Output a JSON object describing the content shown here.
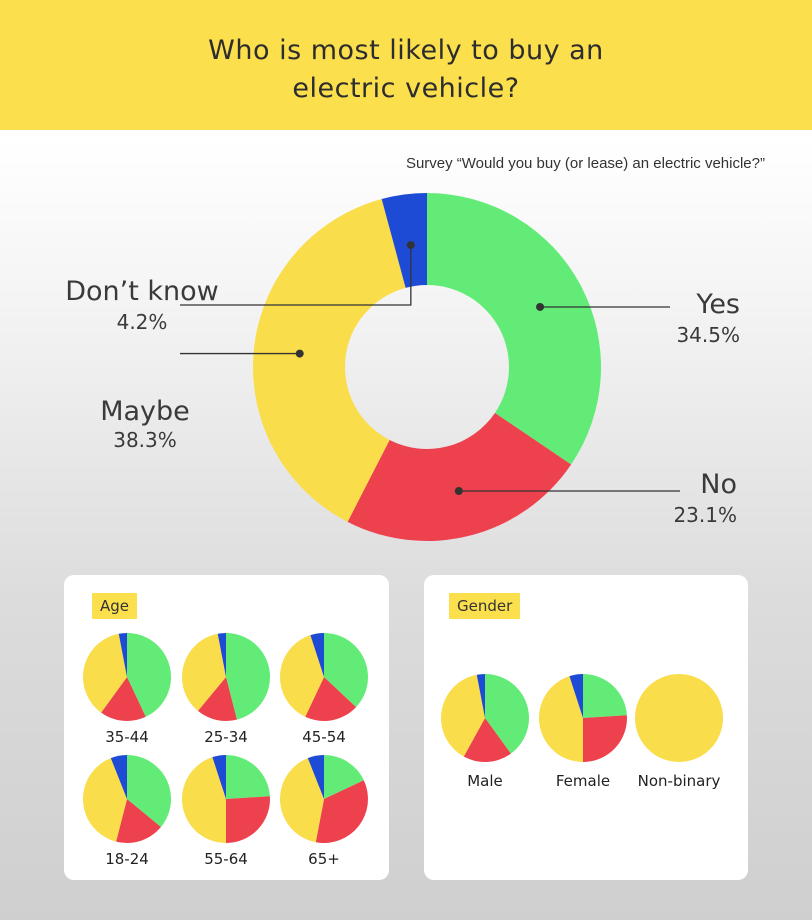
{
  "title_line1": "Who is most likely to buy an",
  "title_line2": "electric vehicle?",
  "subtitle": "Survey “Would you buy (or lease) an electric vehicle?”",
  "colors": {
    "yes": "#62ec77",
    "no": "#ee414e",
    "maybe": "#f9dd4a",
    "dont_know": "#1e4bd6",
    "header": "#fbdf4c"
  },
  "chart_data": [
    {
      "type": "pie",
      "variant": "donut",
      "categories": [
        "Yes",
        "No",
        "Maybe",
        "Don’t know"
      ],
      "values": [
        34.5,
        23.1,
        38.3,
        4.2
      ],
      "value_labels": [
        "34.5%",
        "23.1%",
        "38.3%",
        "4.2%"
      ]
    },
    {
      "type": "pie",
      "panel_title": "Age",
      "categories": [
        "Yes",
        "No",
        "Maybe",
        "Don’t know"
      ],
      "groups": [
        {
          "name": "35-44",
          "values": [
            43,
            17,
            37,
            3
          ]
        },
        {
          "name": "25-34",
          "values": [
            46,
            15,
            36,
            3
          ]
        },
        {
          "name": "45-54",
          "values": [
            37,
            20,
            38,
            5
          ]
        },
        {
          "name": "18-24",
          "values": [
            36,
            18,
            40,
            6
          ]
        },
        {
          "name": "55-64",
          "values": [
            24,
            26,
            45,
            5
          ]
        },
        {
          "name": "65+",
          "values": [
            18,
            35,
            41,
            6
          ]
        }
      ]
    },
    {
      "type": "pie",
      "panel_title": "Gender",
      "categories": [
        "Yes",
        "No",
        "Maybe",
        "Don’t know"
      ],
      "groups": [
        {
          "name": "Male",
          "values": [
            40,
            18,
            39,
            3
          ]
        },
        {
          "name": "Female",
          "values": [
            24,
            26,
            45,
            5
          ]
        },
        {
          "name": "Non-binary",
          "values": [
            0,
            0,
            100,
            0
          ]
        }
      ]
    }
  ]
}
